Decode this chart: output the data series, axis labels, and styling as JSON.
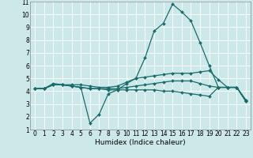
{
  "xlabel": "Humidex (Indice chaleur)",
  "xlim": [
    -0.5,
    23.5
  ],
  "ylim": [
    1,
    11
  ],
  "xticks": [
    0,
    1,
    2,
    3,
    4,
    5,
    6,
    7,
    8,
    9,
    10,
    11,
    12,
    13,
    14,
    15,
    16,
    17,
    18,
    19,
    20,
    21,
    22,
    23
  ],
  "yticks": [
    1,
    2,
    3,
    4,
    5,
    6,
    7,
    8,
    9,
    10,
    11
  ],
  "bg_color": "#cce8e8",
  "line_color": "#1a6b6b",
  "grid_color": "#ffffff",
  "lines": [
    [
      4.2,
      4.2,
      4.6,
      4.5,
      4.4,
      4.3,
      1.5,
      2.2,
      3.8,
      4.1,
      4.6,
      5.0,
      6.6,
      8.7,
      9.3,
      10.8,
      10.2,
      9.5,
      7.8,
      6.0,
      4.3,
      4.3,
      4.3,
      3.3
    ],
    [
      4.2,
      4.2,
      4.5,
      4.5,
      4.5,
      4.5,
      4.4,
      4.3,
      4.3,
      4.4,
      4.7,
      5.0,
      5.1,
      5.2,
      5.3,
      5.4,
      5.4,
      5.4,
      5.5,
      5.6,
      4.9,
      4.3,
      4.3,
      3.3
    ],
    [
      4.2,
      4.2,
      4.5,
      4.5,
      4.4,
      4.3,
      4.2,
      4.2,
      4.2,
      4.2,
      4.3,
      4.4,
      4.5,
      4.6,
      4.7,
      4.8,
      4.8,
      4.8,
      4.6,
      4.4,
      4.3,
      4.3,
      4.3,
      3.2
    ],
    [
      4.2,
      4.2,
      4.5,
      4.5,
      4.4,
      4.3,
      4.2,
      4.2,
      4.1,
      4.1,
      4.1,
      4.1,
      4.1,
      4.1,
      4.0,
      4.0,
      3.9,
      3.8,
      3.7,
      3.6,
      4.3,
      4.3,
      4.3,
      3.2
    ]
  ],
  "figsize": [
    3.2,
    2.0
  ],
  "dpi": 100,
  "tick_fontsize": 5.5,
  "label_fontsize": 6.5,
  "linewidth": 0.9,
  "markersize": 2.0
}
